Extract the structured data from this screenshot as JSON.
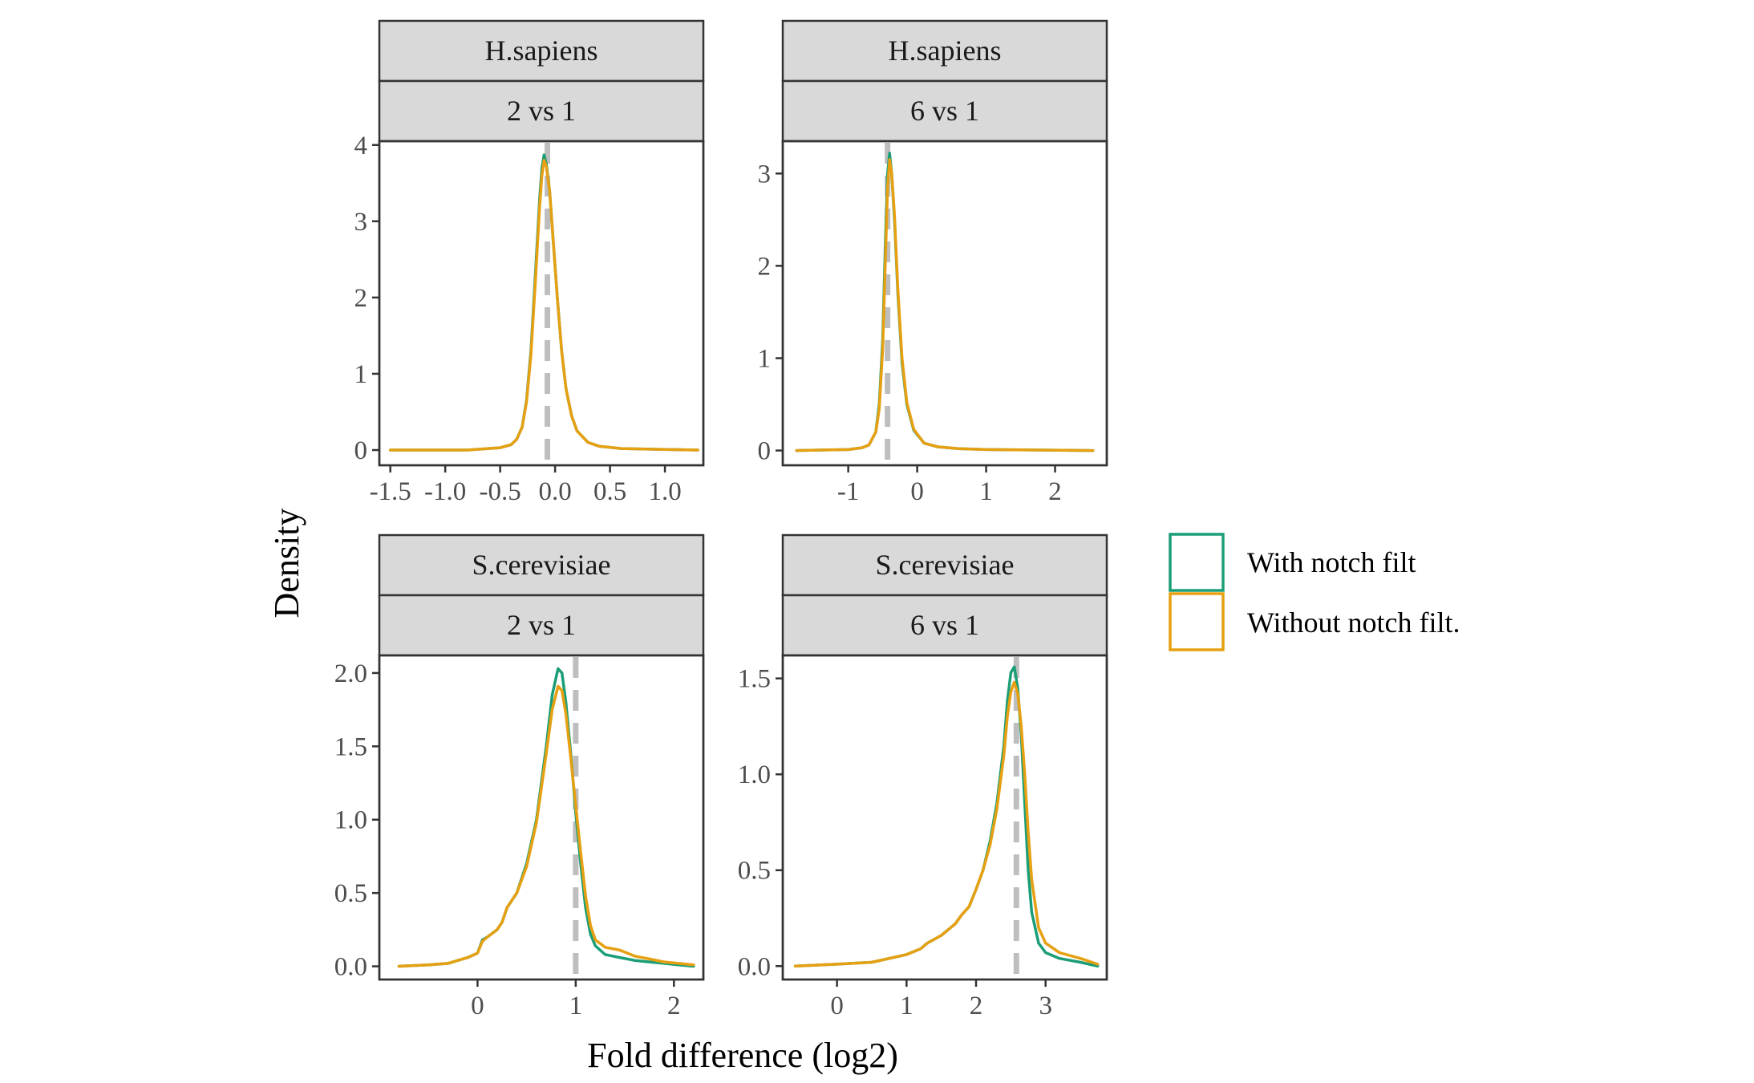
{
  "chart_data": {
    "type": "line",
    "subtype": "density",
    "xlabel": "Fold difference (log2)",
    "ylabel": "Density",
    "legend": {
      "position": "right",
      "entries": [
        {
          "name": "With notch filt",
          "color": "#1b9e77"
        },
        {
          "name": "Without notch filt.",
          "color": "#e6a012"
        }
      ]
    },
    "reference_line_color": "#bebebe",
    "panels": [
      {
        "id": "hs-2v1",
        "strip": [
          "H.sapiens",
          "2 vs 1"
        ],
        "xlim": [
          -1.6,
          1.35
        ],
        "ylim": [
          -0.2,
          4.05
        ],
        "xticks": [
          -1.5,
          -1.0,
          -0.5,
          0.0,
          0.5,
          1.0
        ],
        "xtick_labels": [
          "-1.5",
          "-1.0",
          "-0.5",
          "0.0",
          "0.5",
          "1.0"
        ],
        "yticks": [
          0,
          1,
          2,
          3,
          4
        ],
        "ytick_labels": [
          "0",
          "1",
          "2",
          "3",
          "4"
        ],
        "vline": -0.07,
        "series": [
          {
            "name": "With notch filt",
            "x": [
              -1.5,
              -0.8,
              -0.5,
              -0.4,
              -0.35,
              -0.3,
              -0.26,
              -0.22,
              -0.18,
              -0.14,
              -0.12,
              -0.1,
              -0.08,
              -0.05,
              -0.02,
              0.02,
              0.06,
              0.1,
              0.15,
              0.2,
              0.3,
              0.4,
              0.6,
              0.9,
              1.3
            ],
            "y": [
              0.0,
              0.0,
              0.03,
              0.07,
              0.14,
              0.3,
              0.65,
              1.3,
              2.3,
              3.3,
              3.7,
              3.87,
              3.75,
              3.4,
              2.8,
              2.0,
              1.3,
              0.8,
              0.45,
              0.25,
              0.1,
              0.05,
              0.02,
              0.01,
              0.0
            ]
          },
          {
            "name": "Without notch filt.",
            "x": [
              -1.5,
              -0.8,
              -0.5,
              -0.4,
              -0.35,
              -0.3,
              -0.26,
              -0.22,
              -0.18,
              -0.14,
              -0.12,
              -0.1,
              -0.08,
              -0.05,
              -0.02,
              0.02,
              0.06,
              0.1,
              0.15,
              0.2,
              0.3,
              0.4,
              0.6,
              0.9,
              1.3
            ],
            "y": [
              0.0,
              0.0,
              0.03,
              0.07,
              0.14,
              0.3,
              0.63,
              1.25,
              2.2,
              3.2,
              3.6,
              3.8,
              3.72,
              3.4,
              2.8,
              2.0,
              1.3,
              0.8,
              0.45,
              0.25,
              0.1,
              0.05,
              0.02,
              0.01,
              0.0
            ]
          }
        ]
      },
      {
        "id": "hs-6v1",
        "strip": [
          "H.sapiens",
          "6 vs 1"
        ],
        "xlim": [
          -1.95,
          2.75
        ],
        "ylim": [
          -0.16,
          3.35
        ],
        "xticks": [
          -1,
          0,
          1,
          2
        ],
        "xtick_labels": [
          "-1",
          "0",
          "1",
          "2"
        ],
        "yticks": [
          0,
          1,
          2,
          3
        ],
        "ytick_labels": [
          "0",
          "1",
          "2",
          "3"
        ],
        "vline": -0.43,
        "series": [
          {
            "name": "With notch filt",
            "x": [
              -1.75,
              -1.0,
              -0.8,
              -0.7,
              -0.6,
              -0.55,
              -0.5,
              -0.46,
              -0.43,
              -0.4,
              -0.37,
              -0.33,
              -0.28,
              -0.22,
              -0.15,
              -0.05,
              0.1,
              0.3,
              0.6,
              1.0,
              2.55
            ],
            "y": [
              0.0,
              0.01,
              0.03,
              0.06,
              0.2,
              0.5,
              1.2,
              2.3,
              3.0,
              3.22,
              3.0,
              2.5,
              1.7,
              0.95,
              0.5,
              0.22,
              0.08,
              0.04,
              0.02,
              0.01,
              0.0
            ]
          },
          {
            "name": "Without notch filt.",
            "x": [
              -1.75,
              -1.0,
              -0.8,
              -0.7,
              -0.6,
              -0.55,
              -0.5,
              -0.46,
              -0.43,
              -0.4,
              -0.37,
              -0.33,
              -0.28,
              -0.22,
              -0.15,
              -0.05,
              0.1,
              0.3,
              0.6,
              1.0,
              2.55
            ],
            "y": [
              0.0,
              0.01,
              0.03,
              0.06,
              0.2,
              0.45,
              1.1,
              2.1,
              2.85,
              3.15,
              3.0,
              2.55,
              1.75,
              1.0,
              0.52,
              0.23,
              0.08,
              0.04,
              0.02,
              0.01,
              0.0
            ]
          }
        ]
      },
      {
        "id": "sc-2v1",
        "strip": [
          "S.cerevisiae",
          "2 vs 1"
        ],
        "xlim": [
          -1.0,
          2.3
        ],
        "ylim": [
          -0.09,
          2.12
        ],
        "xticks": [
          0,
          1,
          2
        ],
        "xtick_labels": [
          "0",
          "1",
          "2"
        ],
        "yticks": [
          0.0,
          0.5,
          1.0,
          1.5,
          2.0
        ],
        "ytick_labels": [
          "0.0",
          "0.5",
          "1.0",
          "1.5",
          "2.0"
        ],
        "vline": 1.0,
        "series": [
          {
            "name": "With notch filt",
            "x": [
              -0.8,
              -0.5,
              -0.3,
              -0.2,
              -0.1,
              0.0,
              0.05,
              0.1,
              0.2,
              0.25,
              0.3,
              0.35,
              0.4,
              0.5,
              0.6,
              0.7,
              0.76,
              0.82,
              0.86,
              0.9,
              0.95,
              1.0,
              1.05,
              1.1,
              1.15,
              1.2,
              1.3,
              1.45,
              1.6,
              1.75,
              1.9,
              2.05,
              2.2
            ],
            "y": [
              0.0,
              0.01,
              0.02,
              0.04,
              0.06,
              0.09,
              0.18,
              0.2,
              0.25,
              0.3,
              0.4,
              0.45,
              0.5,
              0.7,
              1.0,
              1.5,
              1.85,
              2.03,
              2.0,
              1.8,
              1.45,
              1.05,
              0.7,
              0.4,
              0.22,
              0.14,
              0.08,
              0.06,
              0.04,
              0.03,
              0.02,
              0.01,
              0.0
            ]
          },
          {
            "name": "Without notch filt.",
            "x": [
              -0.8,
              -0.5,
              -0.3,
              -0.2,
              -0.1,
              0.0,
              0.05,
              0.1,
              0.2,
              0.25,
              0.3,
              0.35,
              0.4,
              0.5,
              0.6,
              0.7,
              0.76,
              0.82,
              0.86,
              0.9,
              0.95,
              1.0,
              1.05,
              1.1,
              1.15,
              1.2,
              1.3,
              1.45,
              1.6,
              1.75,
              1.9,
              2.05,
              2.2
            ],
            "y": [
              0.0,
              0.01,
              0.02,
              0.04,
              0.06,
              0.09,
              0.17,
              0.2,
              0.25,
              0.3,
              0.4,
              0.45,
              0.5,
              0.68,
              0.98,
              1.45,
              1.75,
              1.91,
              1.88,
              1.72,
              1.42,
              1.1,
              0.78,
              0.48,
              0.28,
              0.18,
              0.13,
              0.11,
              0.07,
              0.05,
              0.03,
              0.02,
              0.01
            ]
          }
        ]
      },
      {
        "id": "sc-6v1",
        "strip": [
          "S.cerevisiae",
          "6 vs 1"
        ],
        "xlim": [
          -0.78,
          3.88
        ],
        "ylim": [
          -0.07,
          1.62
        ],
        "xticks": [
          0,
          1,
          2,
          3
        ],
        "xtick_labels": [
          "0",
          "1",
          "2",
          "3"
        ],
        "yticks": [
          0.0,
          0.5,
          1.0,
          1.5
        ],
        "ytick_labels": [
          "0.0",
          "0.5",
          "1.0",
          "1.5"
        ],
        "vline": 2.58,
        "series": [
          {
            "name": "With notch filt",
            "x": [
              -0.6,
              0.0,
              0.5,
              1.0,
              1.2,
              1.3,
              1.5,
              1.7,
              1.8,
              1.9,
              2.0,
              2.1,
              2.2,
              2.3,
              2.4,
              2.45,
              2.5,
              2.55,
              2.6,
              2.65,
              2.7,
              2.75,
              2.8,
              2.9,
              3.0,
              3.2,
              3.5,
              3.75
            ],
            "y": [
              0.0,
              0.01,
              0.02,
              0.06,
              0.09,
              0.12,
              0.16,
              0.22,
              0.27,
              0.31,
              0.4,
              0.5,
              0.65,
              0.85,
              1.15,
              1.38,
              1.53,
              1.56,
              1.45,
              1.2,
              0.85,
              0.5,
              0.28,
              0.12,
              0.07,
              0.04,
              0.02,
              0.0
            ]
          },
          {
            "name": "Without notch filt.",
            "x": [
              -0.6,
              0.0,
              0.5,
              1.0,
              1.2,
              1.3,
              1.5,
              1.7,
              1.8,
              1.9,
              2.0,
              2.1,
              2.2,
              2.3,
              2.4,
              2.45,
              2.5,
              2.55,
              2.6,
              2.65,
              2.7,
              2.75,
              2.8,
              2.9,
              3.0,
              3.2,
              3.5,
              3.75
            ],
            "y": [
              0.0,
              0.01,
              0.02,
              0.06,
              0.09,
              0.12,
              0.16,
              0.22,
              0.27,
              0.31,
              0.4,
              0.5,
              0.63,
              0.82,
              1.1,
              1.3,
              1.43,
              1.48,
              1.42,
              1.25,
              1.0,
              0.7,
              0.45,
              0.2,
              0.12,
              0.07,
              0.04,
              0.01
            ]
          }
        ]
      }
    ]
  }
}
